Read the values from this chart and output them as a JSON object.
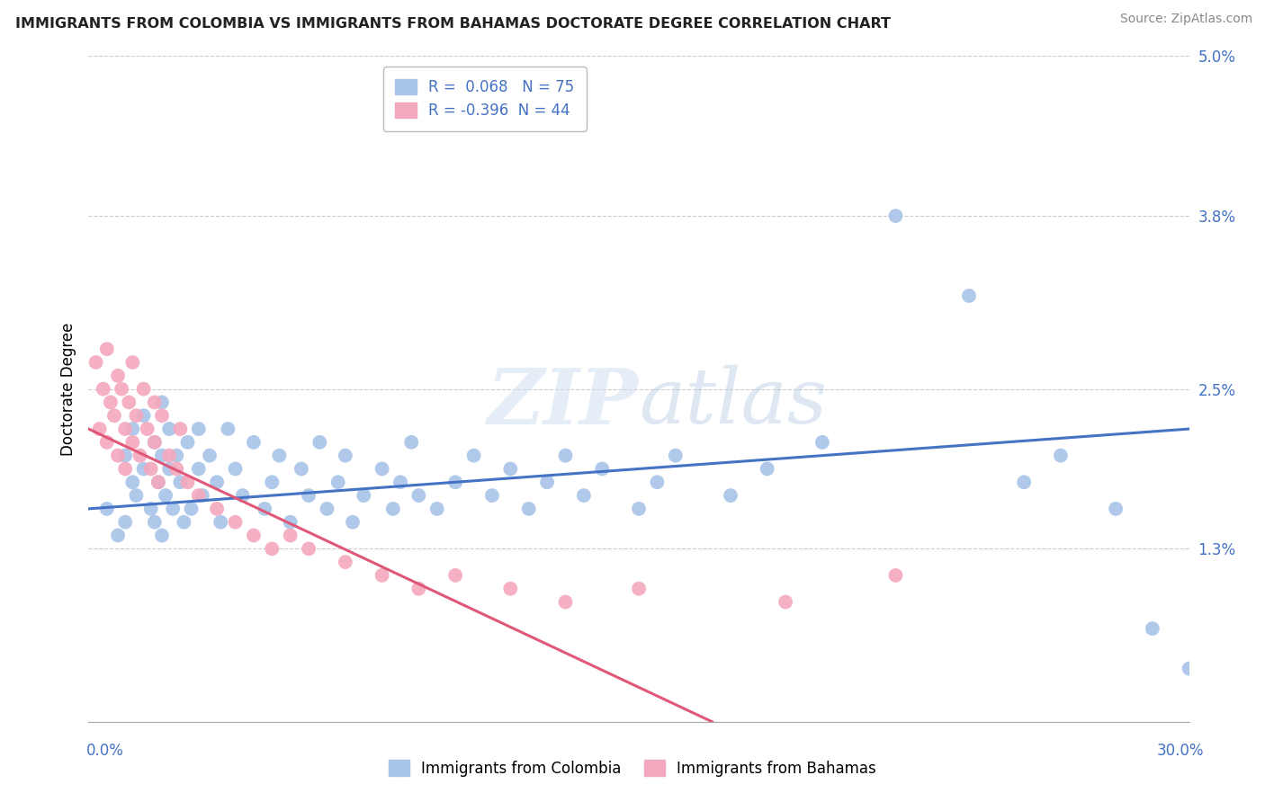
{
  "title": "IMMIGRANTS FROM COLOMBIA VS IMMIGRANTS FROM BAHAMAS DOCTORATE DEGREE CORRELATION CHART",
  "source": "Source: ZipAtlas.com",
  "ylabel": "Doctorate Degree",
  "yticks": [
    0.0,
    0.013,
    0.025,
    0.038,
    0.05
  ],
  "ytick_labels": [
    "",
    "1.3%",
    "2.5%",
    "3.8%",
    "5.0%"
  ],
  "xlim": [
    0.0,
    0.3
  ],
  "ylim": [
    0.0,
    0.05
  ],
  "series1_name": "Immigrants from Colombia",
  "series1_color": "#a8c4e8",
  "series1_line_color": "#4472c4",
  "series1_R": 0.068,
  "series1_N": 75,
  "series2_name": "Immigrants from Bahamas",
  "series2_color": "#f4a8be",
  "series2_line_color": "#e05878",
  "series2_R": -0.396,
  "series2_N": 44,
  "watermark_text": "ZIPatlas",
  "colombia_x": [
    0.005,
    0.008,
    0.01,
    0.01,
    0.012,
    0.012,
    0.013,
    0.015,
    0.015,
    0.017,
    0.018,
    0.018,
    0.019,
    0.02,
    0.02,
    0.02,
    0.021,
    0.022,
    0.022,
    0.023,
    0.024,
    0.025,
    0.026,
    0.027,
    0.028,
    0.03,
    0.03,
    0.031,
    0.033,
    0.035,
    0.036,
    0.038,
    0.04,
    0.042,
    0.045,
    0.048,
    0.05,
    0.052,
    0.055,
    0.058,
    0.06,
    0.063,
    0.065,
    0.068,
    0.07,
    0.072,
    0.075,
    0.08,
    0.083,
    0.085,
    0.088,
    0.09,
    0.095,
    0.1,
    0.105,
    0.11,
    0.115,
    0.12,
    0.125,
    0.13,
    0.135,
    0.14,
    0.15,
    0.155,
    0.16,
    0.175,
    0.185,
    0.2,
    0.22,
    0.24,
    0.255,
    0.265,
    0.28,
    0.29,
    0.3
  ],
  "colombia_y": [
    0.016,
    0.014,
    0.02,
    0.015,
    0.018,
    0.022,
    0.017,
    0.019,
    0.023,
    0.016,
    0.015,
    0.021,
    0.018,
    0.02,
    0.014,
    0.024,
    0.017,
    0.019,
    0.022,
    0.016,
    0.02,
    0.018,
    0.015,
    0.021,
    0.016,
    0.019,
    0.022,
    0.017,
    0.02,
    0.018,
    0.015,
    0.022,
    0.019,
    0.017,
    0.021,
    0.016,
    0.018,
    0.02,
    0.015,
    0.019,
    0.017,
    0.021,
    0.016,
    0.018,
    0.02,
    0.015,
    0.017,
    0.019,
    0.016,
    0.018,
    0.021,
    0.017,
    0.016,
    0.018,
    0.02,
    0.017,
    0.019,
    0.016,
    0.018,
    0.02,
    0.017,
    0.019,
    0.016,
    0.018,
    0.02,
    0.017,
    0.019,
    0.021,
    0.038,
    0.032,
    0.018,
    0.02,
    0.016,
    0.007,
    0.004
  ],
  "bahamas_x": [
    0.002,
    0.003,
    0.004,
    0.005,
    0.005,
    0.006,
    0.007,
    0.008,
    0.008,
    0.009,
    0.01,
    0.01,
    0.011,
    0.012,
    0.012,
    0.013,
    0.014,
    0.015,
    0.016,
    0.017,
    0.018,
    0.018,
    0.019,
    0.02,
    0.022,
    0.024,
    0.025,
    0.027,
    0.03,
    0.035,
    0.04,
    0.045,
    0.05,
    0.055,
    0.06,
    0.07,
    0.08,
    0.09,
    0.1,
    0.115,
    0.13,
    0.15,
    0.19,
    0.22
  ],
  "bahamas_y": [
    0.027,
    0.022,
    0.025,
    0.028,
    0.021,
    0.024,
    0.023,
    0.026,
    0.02,
    0.025,
    0.022,
    0.019,
    0.024,
    0.021,
    0.027,
    0.023,
    0.02,
    0.025,
    0.022,
    0.019,
    0.024,
    0.021,
    0.018,
    0.023,
    0.02,
    0.019,
    0.022,
    0.018,
    0.017,
    0.016,
    0.015,
    0.014,
    0.013,
    0.014,
    0.013,
    0.012,
    0.011,
    0.01,
    0.011,
    0.01,
    0.009,
    0.01,
    0.009,
    0.011
  ]
}
